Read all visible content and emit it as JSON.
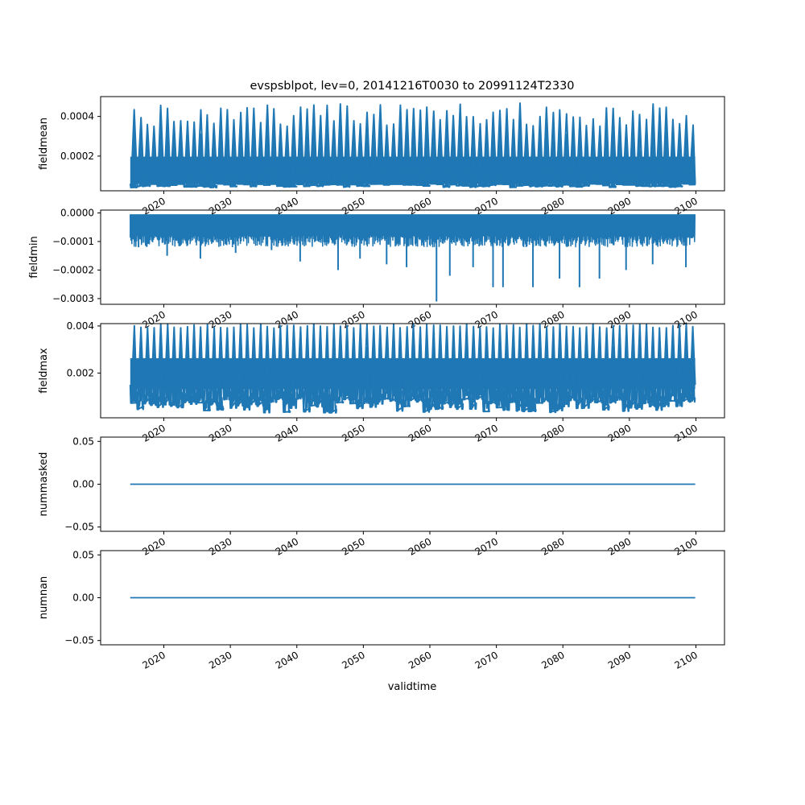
{
  "chart_data": {
    "type": "line",
    "title": "evspsblpot, lev=0, 20141216T0030 to 20991124T2330",
    "xlabel": "validtime",
    "time_range": [
      "2014-12-16T00:30",
      "2099-11-24T23:30"
    ],
    "x_ticks": [
      "2020",
      "2030",
      "2040",
      "2050",
      "2060",
      "2070",
      "2080",
      "2090",
      "2100"
    ],
    "x_range": [
      2010.5,
      2104.3
    ],
    "line_color": "#1f77b4",
    "panels": [
      {
        "ylabel": "fieldmean",
        "ylim": [
          2.5e-05,
          0.0005
        ],
        "yticks": [
          {
            "value": 0.0002,
            "label": "0.0002"
          },
          {
            "value": 0.0004,
            "label": "0.0004"
          }
        ],
        "series": {
          "kind": "seasonal_band",
          "low_range": [
            4e-05,
            6e-05
          ],
          "high_range": [
            0.00035,
            0.00047
          ],
          "baseline": 6e-05
        }
      },
      {
        "ylabel": "fieldmin",
        "ylim": [
          -0.00032,
          1e-05
        ],
        "yticks": [
          {
            "value": 0.0,
            "label": "0.0000"
          },
          {
            "value": -0.0001,
            "label": "−0.0001"
          },
          {
            "value": -0.0002,
            "label": "−0.0002"
          },
          {
            "value": -0.0003,
            "label": "−0.0003"
          }
        ],
        "series": {
          "kind": "negative_band",
          "top": -5e-06,
          "band_bottom": -8e-05,
          "spikes": [
            {
              "x": 2016.2,
              "y": -0.00012
            },
            {
              "x": 2020.5,
              "y": -0.00015
            },
            {
              "x": 2025.5,
              "y": -0.00016
            },
            {
              "x": 2030.8,
              "y": -0.00014
            },
            {
              "x": 2036.2,
              "y": -0.00013
            },
            {
              "x": 2040.5,
              "y": -0.00017
            },
            {
              "x": 2046.2,
              "y": -0.0002
            },
            {
              "x": 2049.5,
              "y": -0.00016
            },
            {
              "x": 2053.5,
              "y": -0.00018
            },
            {
              "x": 2056.5,
              "y": -0.00019
            },
            {
              "x": 2061.0,
              "y": -0.00031
            },
            {
              "x": 2063.0,
              "y": -0.00022
            },
            {
              "x": 2066.5,
              "y": -0.00019
            },
            {
              "x": 2069.5,
              "y": -0.00026
            },
            {
              "x": 2071.0,
              "y": -0.00026
            },
            {
              "x": 2075.5,
              "y": -0.00026
            },
            {
              "x": 2079.5,
              "y": -0.00023
            },
            {
              "x": 2082.5,
              "y": -0.00026
            },
            {
              "x": 2085.5,
              "y": -0.00023
            },
            {
              "x": 2089.5,
              "y": -0.0002
            },
            {
              "x": 2093.5,
              "y": -0.00018
            },
            {
              "x": 2098.5,
              "y": -0.00019
            }
          ]
        }
      },
      {
        "ylabel": "fieldmax",
        "ylim": [
          0.0001,
          0.0041
        ],
        "yticks": [
          {
            "value": 0.002,
            "label": "0.002"
          },
          {
            "value": 0.004,
            "label": "0.004"
          }
        ],
        "series": {
          "kind": "seasonal_band",
          "low_range": [
            0.0003,
            0.0009
          ],
          "high_range": [
            0.0039,
            0.0041
          ],
          "baseline": 0.0015
        }
      },
      {
        "ylabel": "nummasked",
        "ylim": [
          -0.055,
          0.055
        ],
        "yticks": [
          {
            "value": 0.05,
            "label": "0.05"
          },
          {
            "value": 0.0,
            "label": "0.00"
          },
          {
            "value": -0.05,
            "label": "−0.05"
          }
        ],
        "series": {
          "kind": "constant",
          "value": 0
        }
      },
      {
        "ylabel": "numnan",
        "ylim": [
          -0.055,
          0.055
        ],
        "yticks": [
          {
            "value": 0.05,
            "label": "0.05"
          },
          {
            "value": 0.0,
            "label": "0.00"
          },
          {
            "value": -0.05,
            "label": "−0.05"
          }
        ],
        "series": {
          "kind": "constant",
          "value": 0
        }
      }
    ]
  }
}
